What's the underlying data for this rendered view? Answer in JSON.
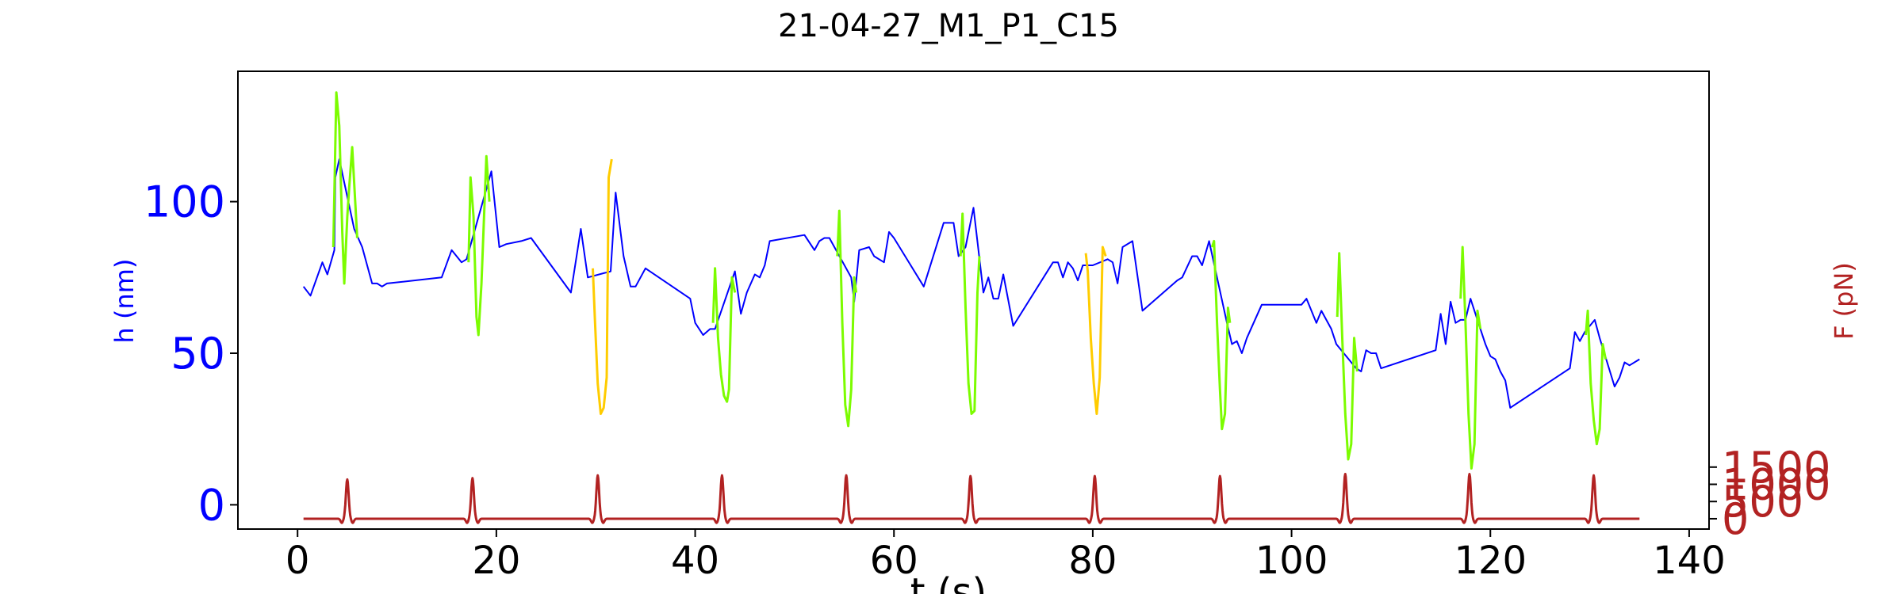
{
  "chart_data": {
    "type": "line",
    "title": "21-04-27_M1_P1_C15",
    "xlabel": "t (s)",
    "ylabel": "h (nm)",
    "ylabel_right": "F (pN)",
    "xlim": [
      -6,
      142
    ],
    "ylim": [
      -8,
      143
    ],
    "ylim_right": [
      -300,
      13000
    ],
    "x_ticks": [
      0,
      20,
      40,
      60,
      80,
      100,
      120,
      140
    ],
    "y_ticks": [
      0,
      50,
      100
    ],
    "y_ticks_right": [
      0,
      500,
      1000,
      1500
    ],
    "grid": false,
    "colors": {
      "h_trace": "#0000ff",
      "compression_green": "#7cfc00",
      "compression_yellow": "#ffcc00",
      "force": "#b22222",
      "right_axis": "#b22222",
      "left_axis": "#0000ff"
    },
    "series": [
      {
        "color": "#0000ff",
        "x": [
          0.6,
          1.3,
          2.5,
          3.0,
          3.7,
          3.8,
          4.2,
          5.7,
          6.5,
          7.5,
          8.0,
          8.5,
          9.0,
          14.5,
          15.5,
          16.5,
          17.0,
          19.5,
          20.3,
          21.0,
          22.5,
          23.5,
          27.5,
          28.5,
          29.2,
          31.5,
          32.0,
          32.8,
          33.5,
          34.0,
          35.0,
          39.5,
          40.0,
          40.8,
          41.5,
          42.0,
          44.0,
          44.6,
          45.2,
          46.0,
          46.5,
          47.0,
          47.5,
          51.0,
          52.0,
          52.5,
          53.0,
          53.5,
          55.7,
          56.0,
          56.5,
          57.5,
          58.0,
          59.0,
          59.5,
          60.0,
          63.0,
          65.0,
          66.0,
          66.5,
          67.2,
          68.0,
          69.0,
          69.5,
          70.0,
          70.5,
          71.0,
          72.0,
          76.0,
          76.5,
          77.0,
          77.5,
          78.0,
          78.5,
          79.0,
          80.0,
          81.5,
          82.0,
          82.5,
          83.0,
          84.0,
          85.0,
          88.5,
          89.0,
          90.0,
          90.5,
          91.0,
          91.7,
          93.5,
          94.0,
          94.5,
          95.0,
          95.5,
          97.0,
          101.0,
          101.5,
          102.5,
          103.0,
          104.0,
          104.5,
          106.5,
          107.0,
          107.5,
          108.0,
          108.5,
          109.0,
          114.5,
          115.0,
          115.5,
          116.0,
          116.5,
          117.0,
          117.5,
          118.0,
          119.0,
          119.5,
          120.0,
          120.5,
          121.0,
          121.5,
          122.0,
          128.0,
          128.5,
          129.0,
          129.5,
          130.0,
          130.5,
          131.0,
          132.5,
          133.0,
          133.5,
          134.0,
          135.0
        ],
        "y": [
          72,
          69,
          80,
          76,
          84,
          108,
          114,
          91,
          85,
          73,
          73,
          72,
          73,
          75,
          84,
          80,
          81,
          110,
          85,
          86,
          87,
          88,
          70,
          91,
          75,
          77,
          103,
          82,
          72,
          72,
          78,
          68,
          60,
          56,
          58,
          58,
          77,
          63,
          70,
          76,
          75,
          79,
          87,
          89,
          84,
          87,
          88,
          88,
          75,
          67,
          84,
          85,
          82,
          80,
          90,
          88,
          72,
          93,
          93,
          82,
          85,
          98,
          70,
          75,
          68,
          68,
          76,
          59,
          80,
          80,
          75,
          80,
          78,
          74,
          79,
          79,
          81,
          80,
          73,
          85,
          87,
          64,
          74,
          75,
          82,
          82,
          79,
          87,
          60,
          53,
          54,
          50,
          55,
          66,
          66,
          68,
          60,
          64,
          58,
          53,
          45,
          44,
          51,
          50,
          50,
          45,
          51,
          63,
          53,
          67,
          60,
          61,
          61,
          68,
          58,
          53,
          49,
          48,
          44,
          41,
          32,
          45,
          57,
          54,
          57,
          59,
          61,
          55,
          39,
          42,
          47,
          46,
          48
        ]
      },
      {
        "color": "#7cfc00",
        "segments": [
          {
            "x": [
              3.6,
              3.9,
              4.2,
              4.5,
              4.7,
              5.0,
              5.2,
              5.5,
              5.8,
              6.0
            ],
            "y": [
              85,
              136,
              125,
              90,
              73,
              95,
              105,
              118,
              100,
              88
            ]
          },
          {
            "x": [
              17.2,
              17.4,
              17.7,
              18.0,
              18.2,
              18.5,
              18.7,
              19.0,
              19.3
            ],
            "y": [
              80,
              108,
              95,
              62,
              56,
              73,
              90,
              115,
              100
            ]
          },
          {
            "x": [
              41.8,
              42.0,
              42.3,
              42.6,
              42.9,
              43.2,
              43.4,
              43.7,
              44.0
            ],
            "y": [
              60,
              78,
              55,
              43,
              36,
              34,
              38,
              75,
              70
            ]
          },
          {
            "x": [
              54.3,
              54.5,
              54.8,
              55.1,
              55.4,
              55.7,
              56.0,
              56.2
            ],
            "y": [
              82,
              97,
              60,
              33,
              26,
              38,
              75,
              70
            ]
          },
          {
            "x": [
              66.7,
              66.9,
              67.2,
              67.5,
              67.8,
              68.1,
              68.4,
              68.6
            ],
            "y": [
              82,
              96,
              65,
              40,
              30,
              31,
              70,
              82
            ]
          },
          {
            "x": [
              92.0,
              92.2,
              92.5,
              92.8,
              93.0,
              93.3,
              93.6,
              93.8
            ],
            "y": [
              85,
              87,
              60,
              38,
              25,
              30,
              65,
              60
            ]
          },
          {
            "x": [
              104.6,
              104.8,
              105.1,
              105.4,
              105.7,
              106.0,
              106.3,
              106.6
            ],
            "y": [
              62,
              83,
              55,
              30,
              15,
              20,
              55,
              44
            ]
          },
          {
            "x": [
              117.0,
              117.2,
              117.5,
              117.8,
              118.1,
              118.4,
              118.7,
              119.0
            ],
            "y": [
              68,
              85,
              60,
              30,
              12,
              20,
              64,
              58
            ]
          },
          {
            "x": [
              129.6,
              129.8,
              130.1,
              130.4,
              130.7,
              131.0,
              131.3,
              131.6
            ],
            "y": [
              56,
              64,
              40,
              28,
              20,
              25,
              53,
              48
            ]
          }
        ]
      },
      {
        "color": "#ffcc00",
        "segments": [
          {
            "x": [
              29.7,
              29.9,
              30.2,
              30.5,
              30.8,
              31.1,
              31.3,
              31.6
            ],
            "y": [
              78,
              62,
              40,
              30,
              32,
              42,
              108,
              114
            ]
          },
          {
            "x": [
              79.3,
              79.5,
              79.8,
              80.1,
              80.4,
              80.7,
              81.0,
              81.3
            ],
            "y": [
              83,
              77,
              55,
              40,
              30,
              42,
              85,
              82
            ]
          }
        ]
      },
      {
        "color": "#b22222",
        "axis": "right",
        "pulse_centers": [
          5.0,
          17.6,
          30.2,
          42.7,
          55.2,
          67.7,
          80.2,
          92.8,
          105.4,
          117.9,
          130.4
        ],
        "pulse_peaks": [
          1140,
          1180,
          1260,
          1260,
          1260,
          1240,
          1240,
          1240,
          1300,
          1300,
          1260
        ],
        "baseline": 0,
        "x_range": [
          0.6,
          135
        ]
      }
    ]
  }
}
